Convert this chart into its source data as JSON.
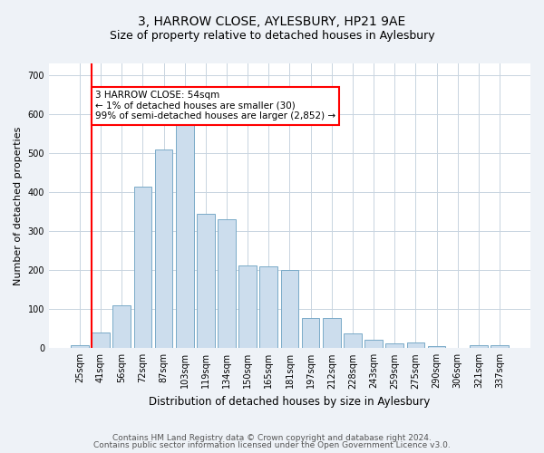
{
  "title": "3, HARROW CLOSE, AYLESBURY, HP21 9AE",
  "subtitle": "Size of property relative to detached houses in Aylesbury",
  "xlabel": "Distribution of detached houses by size in Aylesbury",
  "ylabel": "Number of detached properties",
  "categories": [
    "25sqm",
    "41sqm",
    "56sqm",
    "72sqm",
    "87sqm",
    "103sqm",
    "119sqm",
    "134sqm",
    "150sqm",
    "165sqm",
    "181sqm",
    "197sqm",
    "212sqm",
    "228sqm",
    "243sqm",
    "259sqm",
    "275sqm",
    "290sqm",
    "306sqm",
    "321sqm",
    "337sqm"
  ],
  "values": [
    8,
    40,
    110,
    415,
    510,
    575,
    345,
    330,
    213,
    210,
    200,
    78,
    78,
    38,
    22,
    13,
    15,
    5,
    0,
    7,
    8
  ],
  "bar_color": "#ccdded",
  "bar_edge_color": "#7aaac8",
  "annotation_text_line1": "3 HARROW CLOSE: 54sqm",
  "annotation_text_line2": "← 1% of detached houses are smaller (30)",
  "annotation_text_line3": "99% of semi-detached houses are larger (2,852) →",
  "annotation_box_color": "white",
  "annotation_box_edge_color": "red",
  "marker_line_color": "red",
  "ylim": [
    0,
    730
  ],
  "yticks": [
    0,
    100,
    200,
    300,
    400,
    500,
    600,
    700
  ],
  "footer_line1": "Contains HM Land Registry data © Crown copyright and database right 2024.",
  "footer_line2": "Contains public sector information licensed under the Open Government Licence v3.0.",
  "background_color": "#eef2f7",
  "plot_background_color": "#ffffff",
  "grid_color": "#c8d4e0",
  "title_fontsize": 10,
  "subtitle_fontsize": 9,
  "xlabel_fontsize": 8.5,
  "ylabel_fontsize": 8,
  "tick_fontsize": 7,
  "footer_fontsize": 6.5,
  "annotation_fontsize": 7.5
}
